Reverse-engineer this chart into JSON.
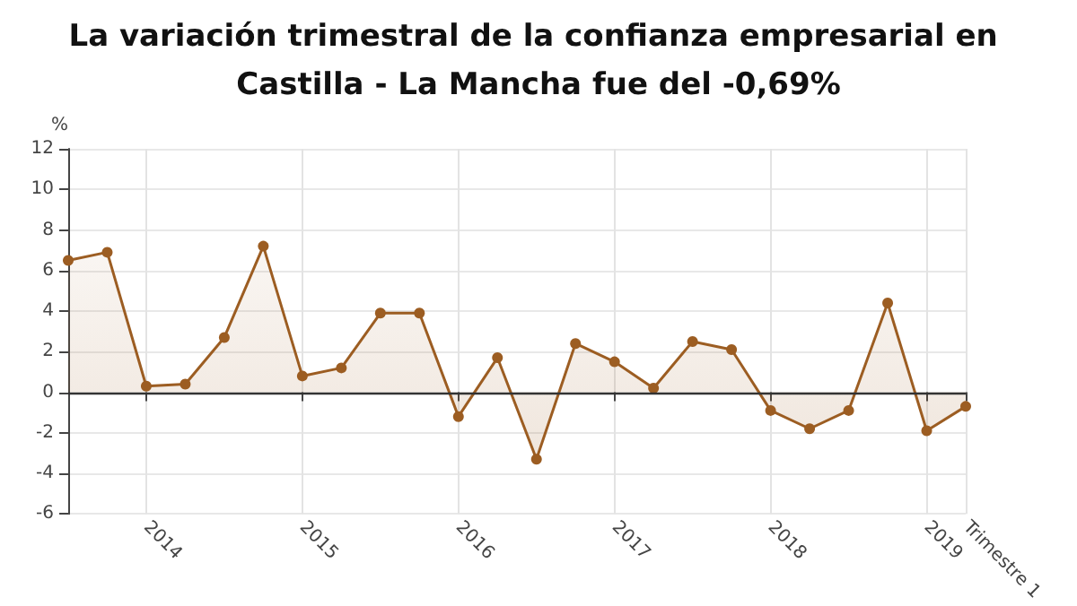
{
  "chart_data": {
    "type": "area",
    "title": "La variación trimestral de la confianza empresarial en Castilla - La Mancha fue del -0,69%",
    "ylabel": "%",
    "categories": [
      null,
      null,
      "2014",
      null,
      null,
      null,
      "2015",
      null,
      null,
      null,
      "2016",
      null,
      null,
      null,
      "2017",
      null,
      null,
      null,
      "2018",
      null,
      null,
      null,
      "2019",
      "Trimestre 1"
    ],
    "series": [
      {
        "color": "#9c5d22",
        "values": [
          6.5,
          6.9,
          0.3,
          0.4,
          2.7,
          7.2,
          0.8,
          1.2,
          3.9,
          3.9,
          -1.2,
          1.7,
          -3.3,
          2.4,
          1.5,
          0.2,
          2.5,
          2.1,
          -0.9,
          -1.8,
          -0.9,
          4.4,
          -1.9,
          -0.7
        ]
      }
    ],
    "ylim": [
      -6,
      12
    ],
    "yticks": [
      -6,
      -4,
      -2,
      0,
      2,
      4,
      6,
      8,
      10,
      12
    ],
    "grid": true,
    "marker": "circle",
    "line_style": "solid",
    "ref_lines": [
      {
        "axis": "y",
        "value": 0,
        "color": "#333333"
      }
    ]
  }
}
